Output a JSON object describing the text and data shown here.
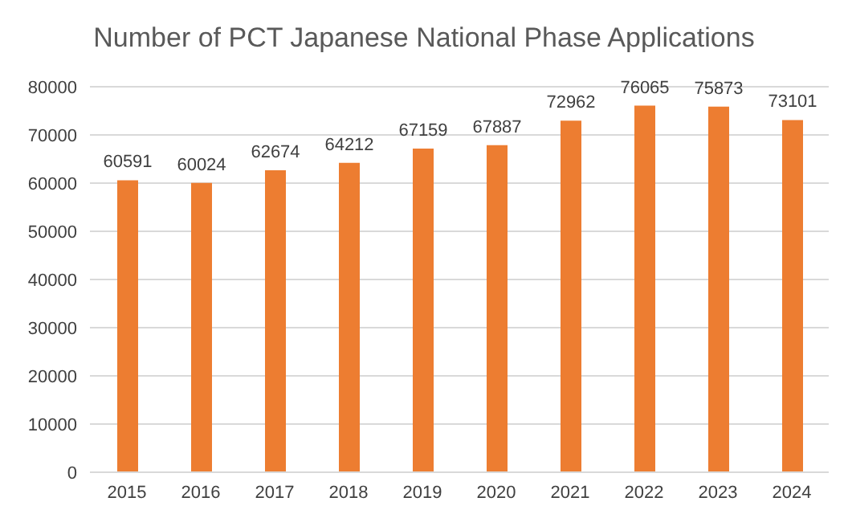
{
  "chart_data": {
    "type": "bar",
    "title": "Number of PCT Japanese National Phase Applications",
    "categories": [
      "2015",
      "2016",
      "2017",
      "2018",
      "2019",
      "2020",
      "2021",
      "2022",
      "2023",
      "2024"
    ],
    "values": [
      60591,
      60024,
      62674,
      64212,
      67159,
      67887,
      72962,
      76065,
      75873,
      73101
    ],
    "color": "#ed7d31",
    "ylim": [
      0,
      80000
    ],
    "yticks": [
      0,
      10000,
      20000,
      30000,
      40000,
      50000,
      60000,
      70000,
      80000
    ],
    "grid": "y",
    "data_labels": true
  }
}
